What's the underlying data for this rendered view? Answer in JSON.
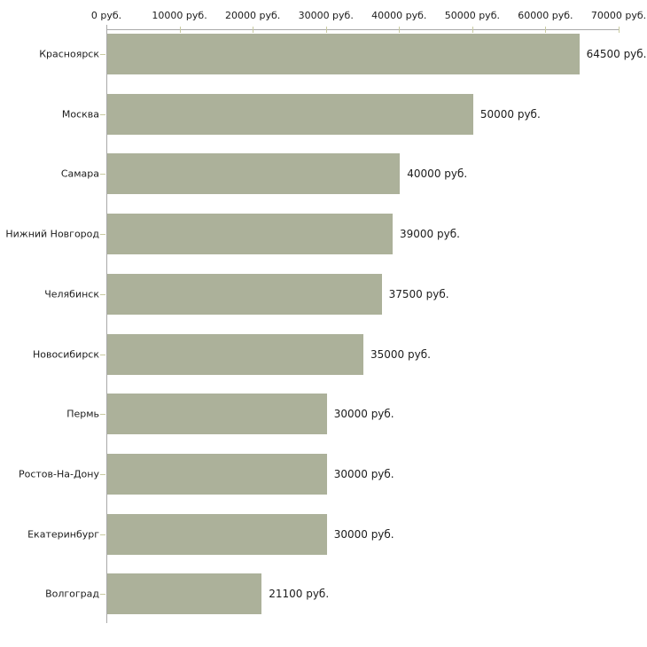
{
  "chart_data": {
    "type": "bar",
    "orientation": "horizontal",
    "title": "",
    "xlabel": "",
    "ylabel": "",
    "unit": "руб.",
    "categories": [
      "Красноярск",
      "Москва",
      "Самара",
      "Нижний Новгород",
      "Челябинск",
      "Новосибирск",
      "Пермь",
      "Ростов-На-Дону",
      "Екатеринбург",
      "Волгоград"
    ],
    "values": [
      64500,
      50000,
      40000,
      39000,
      37500,
      35000,
      30000,
      30000,
      30000,
      21100
    ],
    "value_labels": [
      "64500 руб.",
      "50000 руб.",
      "40000 руб.",
      "39000 руб.",
      "37500 руб.",
      "35000 руб.",
      "30000 руб.",
      "30000 руб.",
      "30000 руб.",
      "21100 руб."
    ],
    "xlim": [
      0,
      70000
    ],
    "x_ticks": [
      0,
      10000,
      20000,
      30000,
      40000,
      50000,
      60000,
      70000
    ],
    "x_tick_labels": [
      "0 руб.",
      "10000 руб.",
      "20000 руб.",
      "30000 руб.",
      "40000 руб.",
      "50000 руб.",
      "60000 руб.",
      "70000 руб."
    ],
    "grid": false,
    "legend": "none",
    "axis_position": "top",
    "colors": {
      "bar": "#acb19a",
      "axis": "#a9a9a9",
      "tick": "#c9cba1",
      "text": "#1c1c1c",
      "background": "#ffffff"
    }
  }
}
